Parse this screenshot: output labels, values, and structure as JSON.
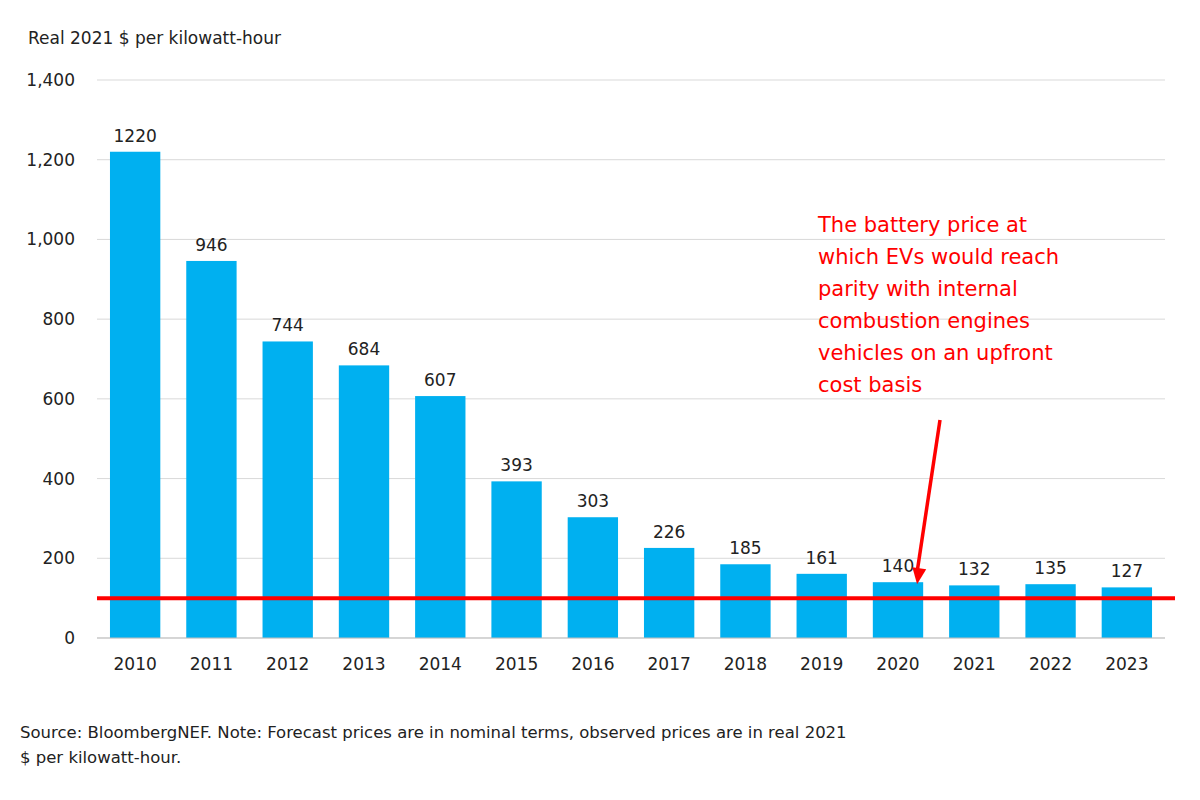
{
  "chart_data": {
    "type": "bar",
    "ylabel": "Real 2021 $ per kilowatt-hour",
    "categories": [
      "2010",
      "2011",
      "2012",
      "2013",
      "2014",
      "2015",
      "2016",
      "2017",
      "2018",
      "2019",
      "2020",
      "2021",
      "2022",
      "2023"
    ],
    "values": [
      1220,
      946,
      744,
      684,
      607,
      393,
      303,
      226,
      185,
      161,
      140,
      132,
      135,
      127
    ],
    "color": "#00b0f0",
    "ylim": [
      0,
      1400
    ],
    "yticks": [
      0,
      200,
      400,
      600,
      800,
      {
        "value": 1000,
        "label": "1,000"
      },
      {
        "value": 1200,
        "label": "1,200"
      },
      {
        "value": 1400,
        "label": "1,400"
      }
    ],
    "grid": true,
    "data_labels": true,
    "annotations": [
      {
        "lines": [
          "The battery price at",
          "which EVs would reach",
          "parity with internal",
          "combustion engines",
          "vehicles on an upfront",
          "cost basis"
        ],
        "y": 100,
        "color": "#ff0000"
      }
    ],
    "note": [
      "Source: BloombergNEF. Note: Forecast prices are in nominal terms, observed prices are in real 2021",
      "$ per kilowatt-hour."
    ]
  }
}
